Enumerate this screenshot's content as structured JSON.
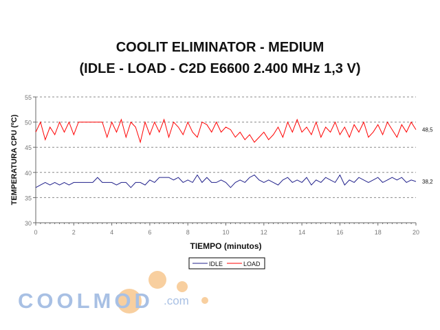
{
  "chart_data": {
    "type": "line",
    "title": [
      "COOLIT ELIMINATOR - MEDIUM",
      "(IDLE - LOAD - C2D E6600 2.400 MHz 1,3 V)"
    ],
    "xlabel": "TIEMPO (minutos)",
    "ylabel": "TEMPERATURA CPU (ºC)",
    "xlim": [
      0,
      20
    ],
    "ylim": [
      30,
      55
    ],
    "xticks": [
      "0",
      "2",
      "4",
      "6",
      "8",
      "10",
      "12",
      "14",
      "16",
      "18",
      "20"
    ],
    "yticks": [
      "30",
      "35",
      "40",
      "45",
      "50",
      "55"
    ],
    "grid": "horizontal dashed",
    "legend_position": "bottom-center",
    "series": [
      {
        "name": "IDLE",
        "color": "#1f1f8a",
        "end_label": "38,2",
        "values": [
          37,
          37.5,
          38,
          37.5,
          38,
          37.5,
          38,
          37.5,
          38,
          38,
          38,
          38,
          38,
          39,
          38,
          38,
          38,
          37.5,
          38,
          38,
          37,
          38,
          38,
          37.5,
          38.5,
          38,
          39,
          39,
          39,
          38.5,
          39,
          38,
          38.5,
          38,
          39.5,
          38,
          39,
          38,
          38,
          38.5,
          38,
          37,
          38,
          38.5,
          38,
          39,
          39.5,
          38.5,
          38,
          38.5,
          38,
          37.5,
          38.5,
          39,
          38,
          38.5,
          38,
          39,
          37.5,
          38.5,
          38,
          39,
          38.5,
          38,
          39.5,
          37.5,
          38.5,
          38,
          39,
          38.5,
          38,
          38.5,
          39,
          38,
          38.5,
          39,
          38.5,
          39,
          38,
          38.5,
          38.2
        ]
      },
      {
        "name": "LOAD",
        "color": "#ff0000",
        "end_label": "48,5",
        "values": [
          48,
          50,
          46.5,
          49,
          47.5,
          50,
          48,
          50,
          47.5,
          50,
          50,
          50,
          50,
          50,
          50,
          47,
          50,
          48,
          50.5,
          47,
          50,
          49,
          46,
          50,
          47.5,
          50,
          48,
          50.5,
          47,
          50,
          49,
          47.5,
          50,
          48,
          47,
          50,
          49.5,
          48,
          50,
          48,
          49,
          48.5,
          47,
          48,
          46.5,
          47.5,
          46,
          47,
          48,
          46.5,
          47.5,
          49,
          47,
          50,
          48,
          50.5,
          48,
          49,
          47.5,
          50,
          47,
          49,
          48,
          50,
          47.5,
          49,
          47,
          49.5,
          48,
          50,
          47,
          48,
          49.5,
          47.5,
          50,
          48.5,
          47,
          49.5,
          48,
          50,
          48.5
        ]
      }
    ]
  },
  "watermark": {
    "text": "COOLMOD",
    "suffix": ".com"
  }
}
